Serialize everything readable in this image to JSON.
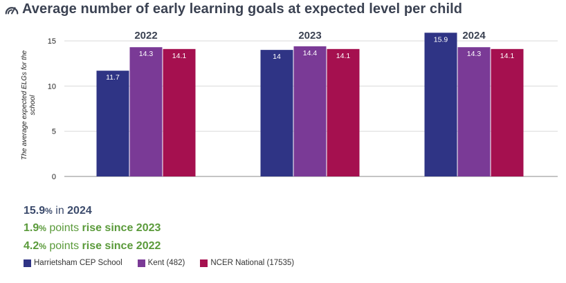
{
  "title": "Average number of early learning goals at expected level per child",
  "icon": "gauge-icon",
  "colors": {
    "school": "#2f3485",
    "kent": "#7a3a96",
    "national": "#a5104f",
    "text_dark": "#3b4252",
    "highlight_green": "#5a9a3a",
    "grid": "#d9d9d9"
  },
  "stats": {
    "line1": {
      "value": "15.9",
      "pct": "%",
      "mid": " in ",
      "year": "2024"
    },
    "line2": {
      "value": "1.9",
      "pct": "%",
      "mid": " points ",
      "tail": "rise since 2023"
    },
    "line3": {
      "value": "4.2",
      "pct": "%",
      "mid": " points ",
      "tail": "rise since 2022"
    }
  },
  "legend": [
    {
      "label": "Harrietsham CEP School",
      "color": "#2f3485"
    },
    {
      "label": "Kent (482)",
      "color": "#7a3a96"
    },
    {
      "label": "NCER National (17535)",
      "color": "#a5104f"
    }
  ],
  "chart_data": {
    "type": "bar",
    "title": "Average number of early learning goals at expected level per child",
    "ylabel": "The average expected ELGs for the school",
    "xlabel": "",
    "ylim": [
      0,
      16
    ],
    "yticks": [
      0,
      5,
      10,
      15
    ],
    "grid": true,
    "categories": [
      "2022",
      "2023",
      "2024"
    ],
    "series": [
      {
        "name": "Harrietsham CEP School",
        "color": "#2f3485",
        "values": [
          11.7,
          14,
          15.9
        ],
        "labels": [
          "11.7",
          "14",
          "15.9"
        ]
      },
      {
        "name": "Kent (482)",
        "color": "#7a3a96",
        "values": [
          14.3,
          14.4,
          14.3
        ],
        "labels": [
          "14.3",
          "14.4",
          "14.3"
        ]
      },
      {
        "name": "NCER National (17535)",
        "color": "#a5104f",
        "values": [
          14.1,
          14.1,
          14.1
        ],
        "labels": [
          "14.1",
          "14.1",
          "14.1"
        ]
      }
    ],
    "legend_position": "bottom-left"
  }
}
